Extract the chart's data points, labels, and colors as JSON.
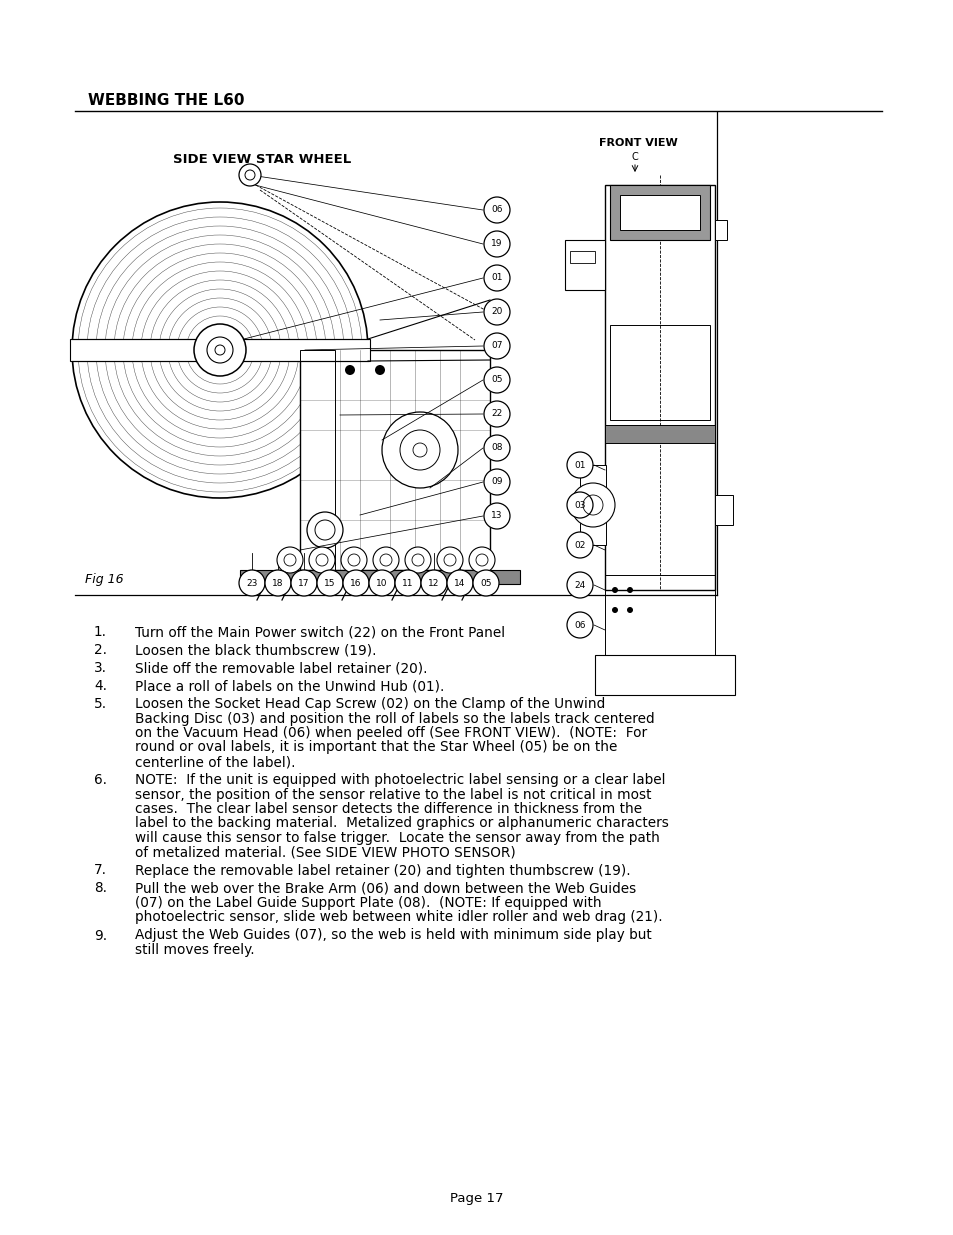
{
  "title": "WEBBING THE L60",
  "page_num": "Page 17",
  "fig_label": "Fig 16",
  "diagram_title_side": "SIDE VIEW STAR WHEEL",
  "diagram_title_front": "FRONT VIEW",
  "diagram_subtitle_front": "C",
  "list_items": [
    [
      "1.",
      "Turn off the Main Power switch (22) on the Front Panel"
    ],
    [
      "2.",
      "Loosen the black thumbscrew (19)."
    ],
    [
      "3.",
      "Slide off the removable label retainer (20)."
    ],
    [
      "4.",
      "Place a roll of labels on the Unwind Hub (01)."
    ],
    [
      "5.",
      "Loosen the Socket Head Cap Screw (02) on the Clamp of the Unwind\nBacking Disc (03) and position the roll of labels so the labels track centered\non the Vacuum Head (06) when peeled off (See FRONT VIEW).  (NOTE:  For\nround or oval labels, it is important that the Star Wheel (05) be on the\ncenterline of the label)."
    ],
    [
      "6.",
      "NOTE:  If the unit is equipped with photoelectric label sensing or a clear label\nsensor, the position of the sensor relative to the label is not critical in most\ncases.  The clear label sensor detects the difference in thickness from the\nlabel to the backing material.  Metalized graphics or alphanumeric characters\nwill cause this sensor to false trigger.  Locate the sensor away from the path\nof metalized material. (See SIDE VIEW PHOTO SENSOR)"
    ],
    [
      "7.",
      "Replace the removable label retainer (20) and tighten thumbscrew (19)."
    ],
    [
      "8.",
      "Pull the web over the Brake Arm (06) and down between the Web Guides\n(07) on the Label Guide Support Plate (08).  (NOTE: If equipped with\nphotoelectric sensor, slide web between white idler roller and web drag (21)."
    ],
    [
      "9.",
      "Adjust the Web Guides (07), so the web is held with minimum side play but\nstill moves freely."
    ]
  ],
  "background_color": "#ffffff",
  "text_color": "#000000"
}
